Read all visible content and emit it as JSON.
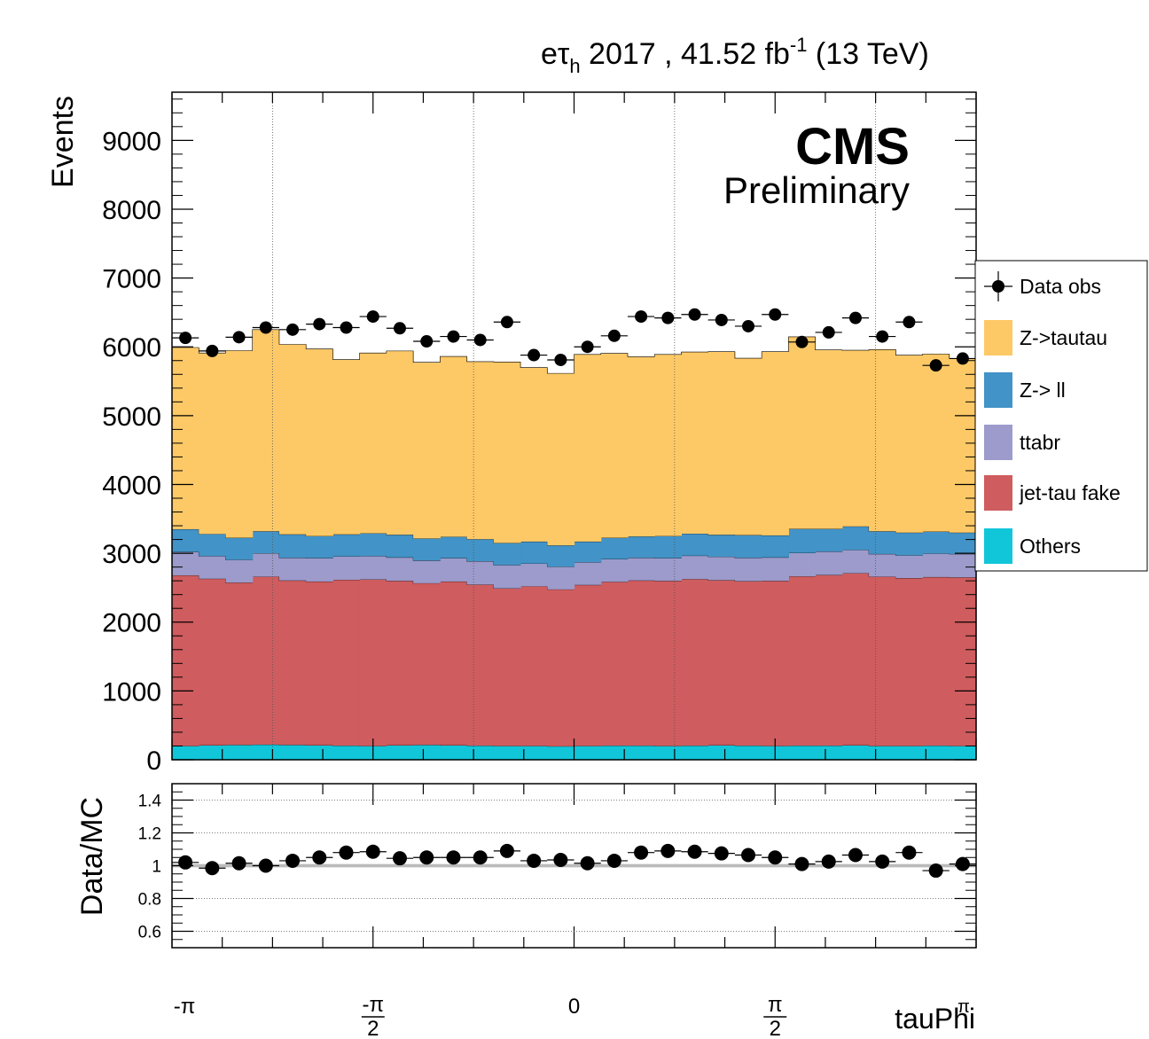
{
  "header": {
    "title_main": "eτ",
    "title_sub": "h",
    "title_rest": " 2017 , 41.52 fb",
    "title_sup": "-1",
    "title_energy": " (13 TeV)"
  },
  "cms_label": "CMS",
  "prelim_label": "Preliminary",
  "chart_data": [
    {
      "type": "area",
      "stacked": true,
      "ylabel": "Events",
      "ylim": [
        0,
        9700
      ],
      "yticks": [
        "0",
        "1000",
        "2000",
        "3000",
        "4000",
        "5000",
        "6000",
        "7000",
        "8000",
        "9000"
      ],
      "ytick_values": [
        0,
        1000,
        2000,
        3000,
        4000,
        5000,
        6000,
        7000,
        8000,
        9000
      ],
      "xlim": [
        -3.1416,
        3.1416
      ],
      "bins": 30,
      "colors": {
        "Others": "#11c6d9",
        "jet-tau fake": "#cf5c5e",
        "ttabr": "#9c9bcb",
        "Z-> ll": "#4293c7",
        "Z->tautau": "#fdc966"
      },
      "series": [
        {
          "name": "Others",
          "values": [
            200,
            210,
            215,
            220,
            215,
            210,
            205,
            200,
            210,
            215,
            210,
            205,
            200,
            200,
            195,
            200,
            205,
            205,
            200,
            205,
            210,
            205,
            200,
            205,
            205,
            210,
            200,
            200,
            205,
            200
          ]
        },
        {
          "name": "jet-tau fake",
          "values": [
            2480,
            2420,
            2360,
            2440,
            2390,
            2380,
            2410,
            2420,
            2390,
            2350,
            2380,
            2340,
            2290,
            2320,
            2280,
            2340,
            2380,
            2400,
            2400,
            2420,
            2400,
            2390,
            2400,
            2460,
            2480,
            2500,
            2460,
            2440,
            2450,
            2450
          ]
        },
        {
          "name": "ttabr",
          "values": [
            340,
            330,
            330,
            340,
            330,
            340,
            340,
            340,
            340,
            330,
            340,
            340,
            340,
            330,
            330,
            330,
            330,
            330,
            330,
            340,
            340,
            340,
            340,
            340,
            340,
            340,
            330,
            330,
            340,
            340
          ]
        },
        {
          "name": "Z-> ll",
          "values": [
            330,
            320,
            320,
            320,
            340,
            320,
            320,
            330,
            330,
            320,
            310,
            320,
            320,
            320,
            310,
            300,
            310,
            310,
            320,
            320,
            320,
            330,
            320,
            350,
            330,
            340,
            330,
            330,
            320,
            310
          ]
        },
        {
          "name": "Z->tautau",
          "values": [
            2640,
            2630,
            2720,
            2930,
            2760,
            2720,
            2540,
            2620,
            2670,
            2560,
            2620,
            2580,
            2630,
            2530,
            2500,
            2720,
            2680,
            2610,
            2640,
            2640,
            2660,
            2570,
            2670,
            2790,
            2600,
            2560,
            2640,
            2580,
            2580,
            2530
          ]
        }
      ],
      "data_obs": {
        "name": "Data obs",
        "values": [
          6130,
          5940,
          6140,
          6280,
          6250,
          6330,
          6280,
          6440,
          6270,
          6080,
          6150,
          6100,
          6360,
          5880,
          5810,
          6000,
          6160,
          6440,
          6420,
          6470,
          6390,
          6300,
          6470,
          6070,
          6210,
          6420,
          6150,
          6360,
          5730,
          5830
        ]
      },
      "legend": [
        "Data obs",
        "Z->tautau",
        "Z-> ll",
        "ttabr",
        "jet-tau fake",
        "Others"
      ],
      "legend_position": "right"
    },
    {
      "type": "scatter",
      "ylabel": "Data/MC",
      "xlabel": "tauPhi",
      "ylim": [
        0.5,
        1.5
      ],
      "yticks": [
        "0.6",
        "0.8",
        "1",
        "1.2",
        "1.4"
      ],
      "ytick_values": [
        0.6,
        0.8,
        1.0,
        1.2,
        1.4
      ],
      "xticks": [
        "-π",
        "-π/2",
        "0",
        "π/2",
        "π"
      ],
      "xtick_values": [
        -3.1416,
        -1.5708,
        0,
        1.5708,
        3.1416
      ],
      "values": [
        1.02,
        0.985,
        1.015,
        1.0,
        1.03,
        1.05,
        1.08,
        1.085,
        1.045,
        1.05,
        1.05,
        1.05,
        1.09,
        1.03,
        1.035,
        1.015,
        1.03,
        1.08,
        1.09,
        1.085,
        1.075,
        1.065,
        1.05,
        1.01,
        1.025,
        1.065,
        1.025,
        1.08,
        0.97,
        1.01
      ]
    }
  ]
}
